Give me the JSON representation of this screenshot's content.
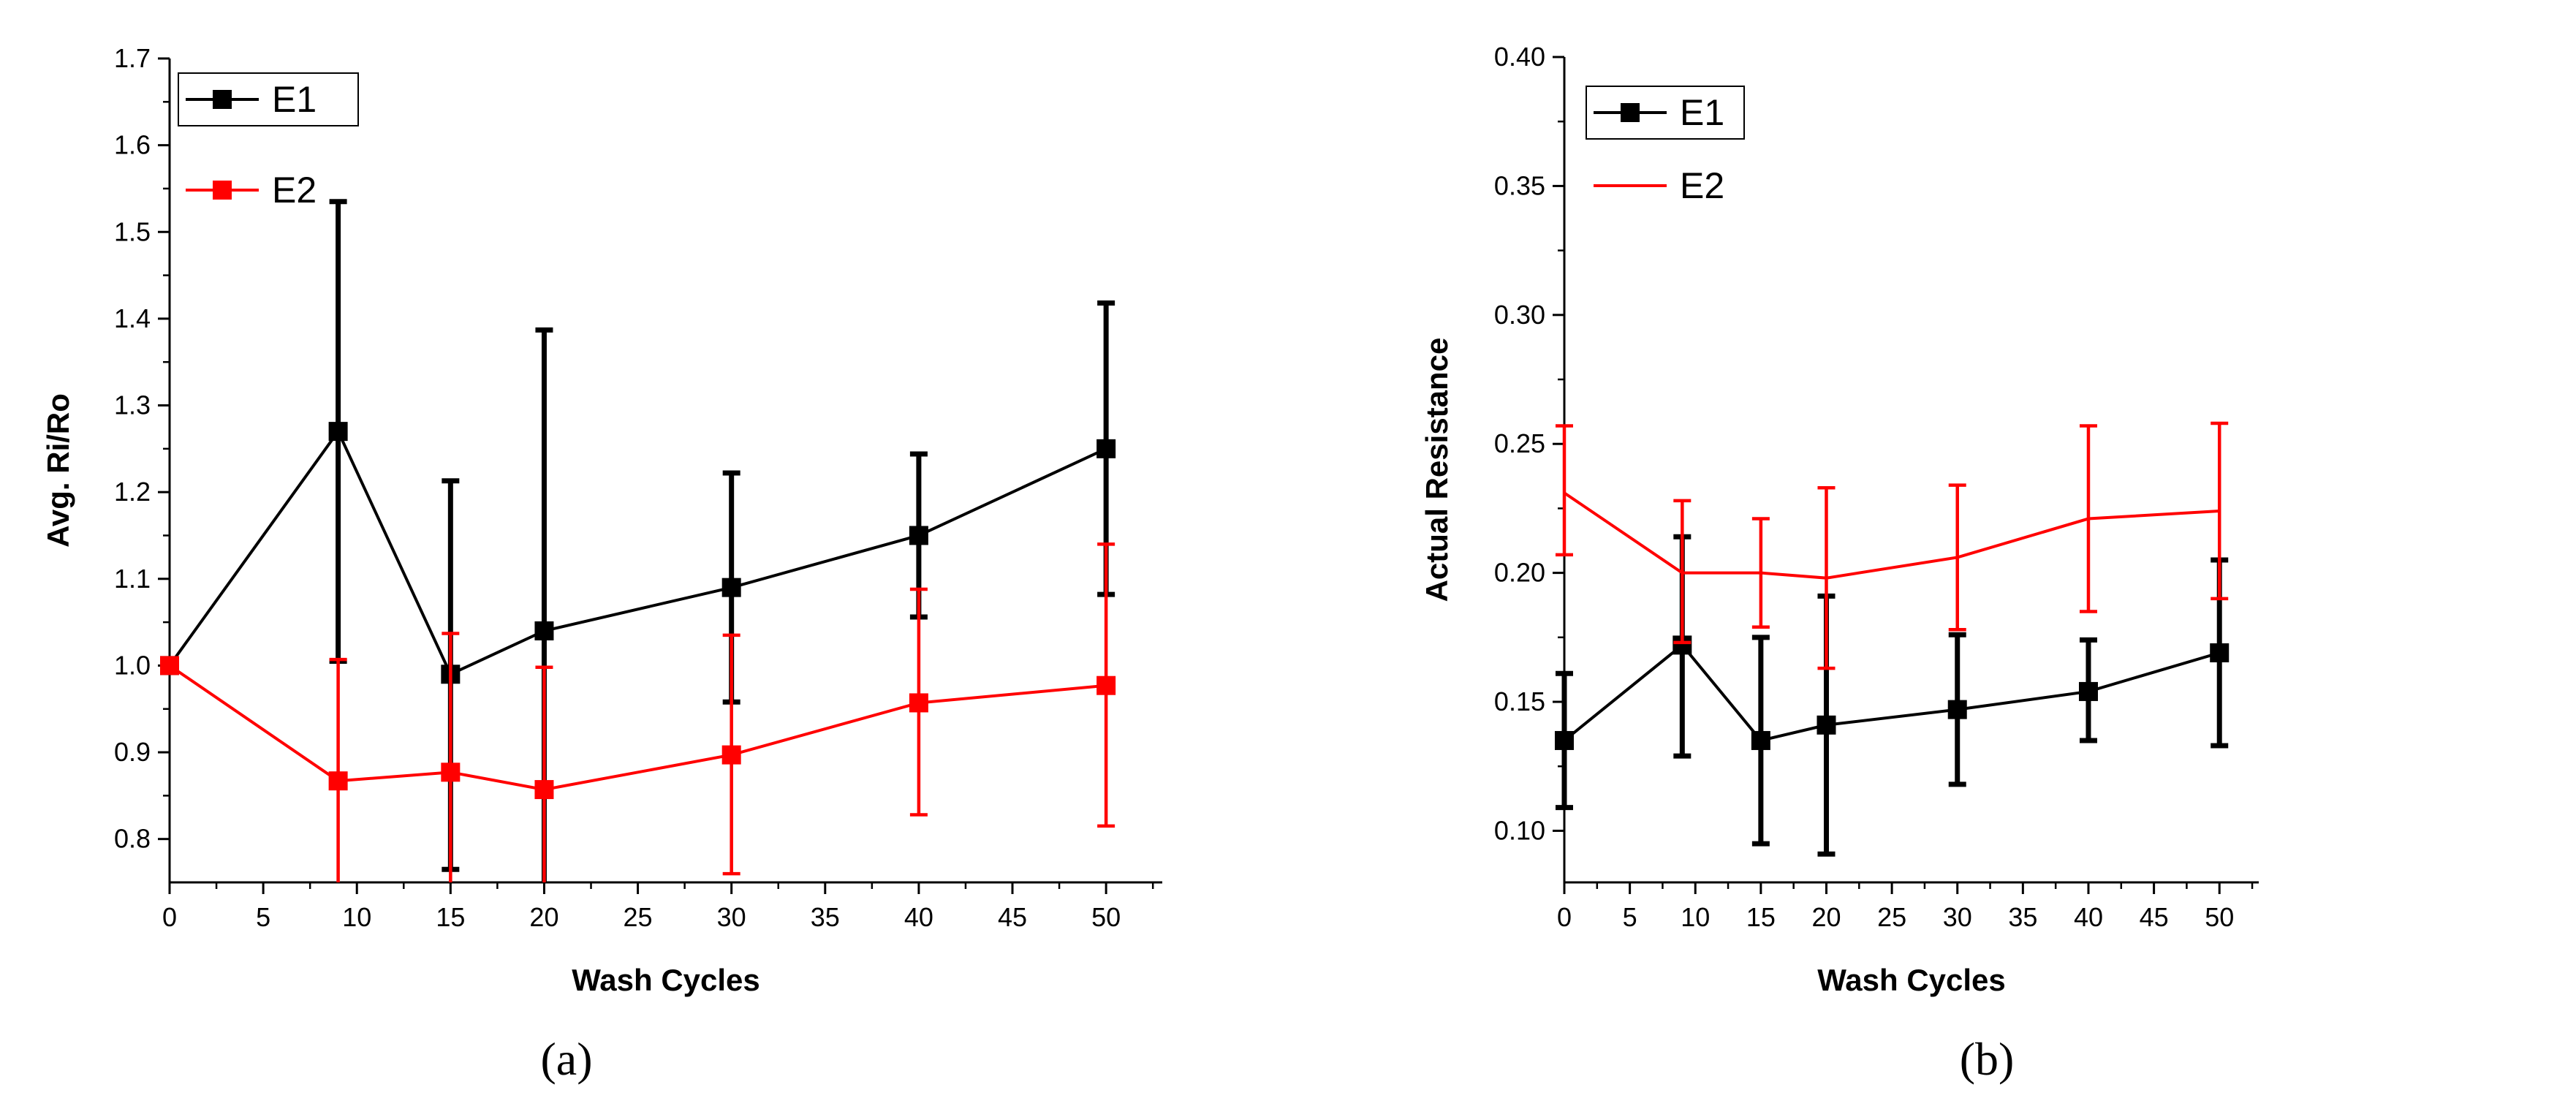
{
  "chart_data": [
    {
      "type": "line",
      "panel_label": "(a)",
      "xlabel": "Wash Cycles",
      "ylabel": "Avg. Ri/Ro",
      "xlim": [
        0,
        53
      ],
      "ylim": [
        0.75,
        1.7
      ],
      "xticks": [
        0,
        5,
        10,
        15,
        20,
        25,
        30,
        35,
        40,
        45,
        50
      ],
      "yticks": [
        0.8,
        0.9,
        1.0,
        1.1,
        1.2,
        1.3,
        1.4,
        1.5,
        1.6,
        1.7
      ],
      "ytick_labels": [
        "0.8",
        "0.9",
        "1.0",
        "1.1",
        "1.2",
        "1.3",
        "1.4",
        "1.5",
        "1.6",
        "1.7"
      ],
      "legend_position": "top-left",
      "series": [
        {
          "name": "E1",
          "color": "#000000",
          "marker": "square",
          "x": [
            0,
            9,
            15,
            20,
            30,
            40,
            50
          ],
          "y": [
            1.0,
            1.27,
            0.99,
            1.04,
            1.09,
            1.15,
            1.25
          ],
          "err_low": [
            1.0,
            1.005,
            0.765,
            0.69,
            0.958,
            1.056,
            1.082
          ],
          "err_high": [
            1.0,
            1.535,
            1.213,
            1.387,
            1.222,
            1.244,
            1.418
          ]
        },
        {
          "name": "E2",
          "color": "#ff0000",
          "marker": "square",
          "x": [
            0,
            9,
            15,
            20,
            30,
            40,
            50
          ],
          "y": [
            1.0,
            0.867,
            0.877,
            0.857,
            0.897,
            0.957,
            0.977
          ],
          "err_low": [
            1.0,
            0.72,
            0.72,
            0.72,
            0.76,
            0.828,
            0.815
          ],
          "err_high": [
            1.0,
            1.007,
            1.037,
            0.998,
            1.035,
            1.088,
            1.14
          ]
        }
      ]
    },
    {
      "type": "line",
      "panel_label": "(b)",
      "xlabel": "Wash Cycles",
      "ylabel": "Actual Resistance",
      "xlim": [
        0,
        53
      ],
      "ylim": [
        0.08,
        0.4
      ],
      "xticks": [
        0,
        5,
        10,
        15,
        20,
        25,
        30,
        35,
        40,
        45,
        50
      ],
      "yticks": [
        0.1,
        0.15,
        0.2,
        0.25,
        0.3,
        0.35,
        0.4
      ],
      "ytick_labels": [
        "0.10",
        "0.15",
        "0.20",
        "0.25",
        "0.30",
        "0.35",
        "0.40"
      ],
      "legend_position": "top-left",
      "series": [
        {
          "name": "E1",
          "color": "#000000",
          "marker": "square",
          "x": [
            0,
            9,
            15,
            20,
            30,
            40,
            50
          ],
          "y": [
            0.135,
            0.172,
            0.135,
            0.141,
            0.147,
            0.154,
            0.169
          ],
          "err_low": [
            0.109,
            0.129,
            0.095,
            0.091,
            0.118,
            0.135,
            0.133
          ],
          "err_high": [
            0.161,
            0.214,
            0.175,
            0.191,
            0.176,
            0.174,
            0.205
          ]
        },
        {
          "name": "E2",
          "color": "#ff0000",
          "marker": "none",
          "x": [
            0,
            9,
            15,
            20,
            30,
            40,
            50
          ],
          "y": [
            0.231,
            0.2,
            0.2,
            0.198,
            0.206,
            0.221,
            0.224
          ],
          "err_low": [
            0.207,
            0.173,
            0.179,
            0.163,
            0.178,
            0.185,
            0.19
          ],
          "err_high": [
            0.257,
            0.228,
            0.221,
            0.233,
            0.234,
            0.257,
            0.258
          ]
        }
      ]
    }
  ]
}
